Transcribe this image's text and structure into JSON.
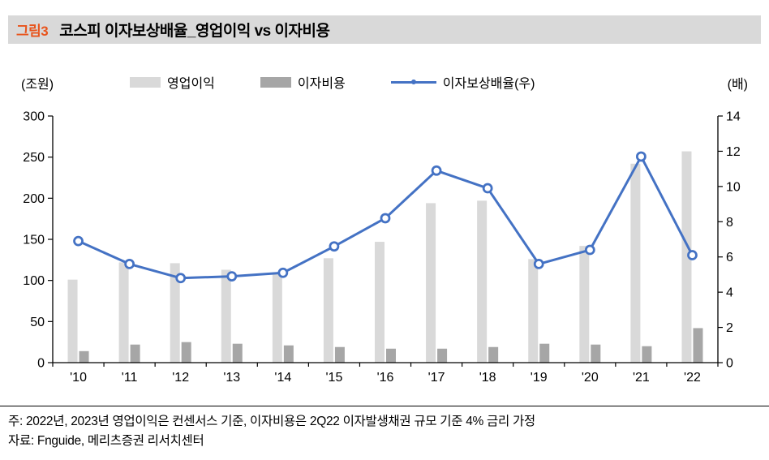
{
  "header": {
    "tag": "그림3",
    "title": "코스피 이자보상배율_영업이익 vs 이자비용"
  },
  "colors": {
    "tag_accent": "#e8541c",
    "header_bg": "#d9d9d9",
    "bar_light": "#d9d9d9",
    "bar_dark": "#a6a6a6",
    "line_blue": "#4472c4",
    "axis": "#000000"
  },
  "legend": {
    "left_unit": "(조원)",
    "right_unit": "(배)",
    "items": [
      {
        "label": "영업이익",
        "type": "bar",
        "color": "#d9d9d9"
      },
      {
        "label": "이자비용",
        "type": "bar",
        "color": "#a6a6a6"
      },
      {
        "label": "이자보상배율(우)",
        "type": "line",
        "color": "#4472c4"
      }
    ]
  },
  "chart_data": {
    "type": "bar",
    "subtype": "combo-bar-line",
    "categories": [
      "'10",
      "'11",
      "'12",
      "'13",
      "'14",
      "'15",
      "'16",
      "'17",
      "'18",
      "'19",
      "'20",
      "'21",
      "'22"
    ],
    "series": [
      {
        "name": "영업이익",
        "type": "bar",
        "axis": "left",
        "color": "#d9d9d9",
        "values": [
          101,
          122,
          121,
          113,
          110,
          127,
          147,
          194,
          197,
          126,
          142,
          242,
          257
        ]
      },
      {
        "name": "이자비용",
        "type": "bar",
        "axis": "left",
        "color": "#a6a6a6",
        "values": [
          14,
          22,
          25,
          23,
          21,
          19,
          17,
          17,
          19,
          23,
          22,
          20,
          42
        ]
      },
      {
        "name": "이자보상배율(우)",
        "type": "line",
        "axis": "right",
        "color": "#4472c4",
        "values": [
          6.9,
          5.6,
          4.8,
          4.9,
          5.1,
          6.6,
          8.2,
          10.9,
          9.9,
          5.6,
          6.4,
          11.7,
          6.1
        ]
      }
    ],
    "left_axis": {
      "unit": "(조원)",
      "min": 0,
      "max": 300,
      "step": 50
    },
    "right_axis": {
      "unit": "(배)",
      "min": 0,
      "max": 14,
      "step": 2
    },
    "grid": false,
    "legend_position": "top",
    "title": "코스피 이자보상배율_영업이익 vs 이자비용"
  },
  "footer": {
    "note": "주: 2022년, 2023년 영업이익은 컨센서스 기준, 이자비용은 2Q22 이자발생채권 규모 기준 4% 금리 가정",
    "source": "자료: Fnguide, 메리츠증권 리서치센터"
  }
}
